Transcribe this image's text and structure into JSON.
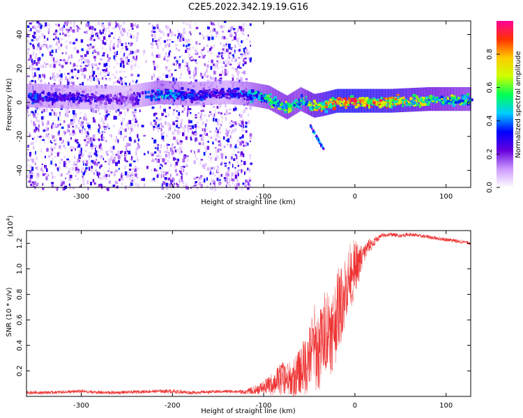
{
  "title": "C2E5.2022.342.19.19.G16",
  "chart_data": [
    {
      "type": "heatmap",
      "title": "C2E5.2022.342.19.19.G16",
      "xlabel": "Height of straight line (km)",
      "ylabel": "Frequency (Hz)",
      "xlim": [
        -360,
        127
      ],
      "ylim": [
        -50,
        48
      ],
      "xticks": [
        -300,
        -200,
        -100,
        0,
        100
      ],
      "yticks": [
        -40,
        -20,
        0,
        20,
        40
      ],
      "xtick_labels": [
        "-300",
        "-200",
        "-100",
        "0",
        "100"
      ],
      "ytick_labels": [
        "-40",
        "-20",
        "0",
        "20",
        "40"
      ],
      "colorbar": {
        "label": "Normalized spectral amplitude",
        "range": [
          0,
          1
        ],
        "ticks": [
          0,
          0.2,
          0.4,
          0.6,
          0.8
        ],
        "tick_labels": [
          "0.0",
          "0.2",
          "0.4",
          "0.6",
          "0.8"
        ],
        "colormap": [
          "#ffffff",
          "#cc99ff",
          "#6600dd",
          "#0000ff",
          "#00ccff",
          "#00ff55",
          "#ccff00",
          "#ffcc00",
          "#ff3300",
          "#ff0099"
        ]
      },
      "noise_region_km": [
        -360,
        -115
      ],
      "gap_region_km": [
        -238,
        -224
      ],
      "signal_band": [
        {
          "x": -345,
          "freq": 4,
          "amp": 0.35
        },
        {
          "x": -300,
          "freq": 3,
          "amp": 0.28
        },
        {
          "x": -250,
          "freq": 3,
          "amp": 0.22
        },
        {
          "x": -215,
          "freq": 6,
          "amp": 0.45
        },
        {
          "x": -180,
          "freq": 5,
          "amp": 0.35
        },
        {
          "x": -140,
          "freq": 6,
          "amp": 0.3
        },
        {
          "x": -115,
          "freq": 5,
          "amp": 0.45
        },
        {
          "x": -95,
          "freq": 3,
          "amp": 0.55
        },
        {
          "x": -75,
          "freq": -3,
          "amp": 0.6
        },
        {
          "x": -60,
          "freq": 2,
          "amp": 0.55
        },
        {
          "x": -45,
          "freq": -2,
          "amp": 0.7
        },
        {
          "x": -35,
          "freq": -1,
          "amp": 0.75
        },
        {
          "x": -20,
          "freq": 1,
          "amp": 0.9
        },
        {
          "x": 0,
          "freq": 1,
          "amp": 0.9
        },
        {
          "x": 40,
          "freq": 1,
          "amp": 0.8
        },
        {
          "x": 80,
          "freq": 2,
          "amp": 0.65
        },
        {
          "x": 127,
          "freq": 2,
          "amp": 0.55
        }
      ],
      "secondary_feature": {
        "x_range": [
          -50,
          -35
        ],
        "freq_range": [
          -13,
          -27
        ],
        "amp": 0.3
      }
    },
    {
      "type": "line",
      "xlabel": "Height of straight line (km)",
      "ylabel": "SNR (10 * v/v)",
      "y_multiplier_label": "(x10",
      "y_multiplier_exponent": "4",
      "y_multiplier_close": ")",
      "xlim": [
        -360,
        127
      ],
      "ylim": [
        0,
        1.3
      ],
      "xticks": [
        -300,
        -200,
        -100,
        0,
        100
      ],
      "yticks": [
        0.2,
        0.4,
        0.6,
        0.8,
        1.0,
        1.2
      ],
      "xtick_labels": [
        "-300",
        "-200",
        "-100",
        "0",
        "100"
      ],
      "ytick_labels": [
        "0.2",
        "0.4",
        "0.6",
        "0.8",
        "1.0",
        "1.2"
      ],
      "color": "#ee3333",
      "series": [
        {
          "name": "SNR",
          "x": [
            -360,
            -340,
            -320,
            -300,
            -280,
            -260,
            -240,
            -220,
            -200,
            -180,
            -160,
            -140,
            -120,
            -110,
            -100,
            -90,
            -80,
            -70,
            -60,
            -50,
            -45,
            -40,
            -35,
            -30,
            -25,
            -20,
            -15,
            -10,
            -5,
            0,
            5,
            10,
            15,
            20,
            25,
            30,
            40,
            50,
            60,
            70,
            80,
            90,
            100,
            110,
            120,
            127
          ],
          "values": [
            0.03,
            0.03,
            0.035,
            0.04,
            0.03,
            0.03,
            0.035,
            0.04,
            0.04,
            0.03,
            0.035,
            0.04,
            0.035,
            0.05,
            0.07,
            0.1,
            0.15,
            0.12,
            0.2,
            0.3,
            0.4,
            0.35,
            0.45,
            0.55,
            0.5,
            0.65,
            0.75,
            0.85,
            0.95,
            1.0,
            1.05,
            1.12,
            1.18,
            1.2,
            1.24,
            1.26,
            1.27,
            1.26,
            1.27,
            1.26,
            1.25,
            1.24,
            1.23,
            1.22,
            1.21,
            1.2
          ],
          "noise": [
            0.01,
            0.01,
            0.01,
            0.01,
            0.01,
            0.01,
            0.01,
            0.01,
            0.015,
            0.01,
            0.01,
            0.01,
            0.015,
            0.03,
            0.05,
            0.08,
            0.12,
            0.12,
            0.18,
            0.25,
            0.28,
            0.3,
            0.3,
            0.3,
            0.3,
            0.3,
            0.28,
            0.25,
            0.22,
            0.2,
            0.12,
            0.08,
            0.05,
            0.04,
            0.02,
            0.015,
            0.012,
            0.012,
            0.012,
            0.012,
            0.012,
            0.012,
            0.012,
            0.012,
            0.012,
            0.012
          ]
        }
      ]
    }
  ]
}
